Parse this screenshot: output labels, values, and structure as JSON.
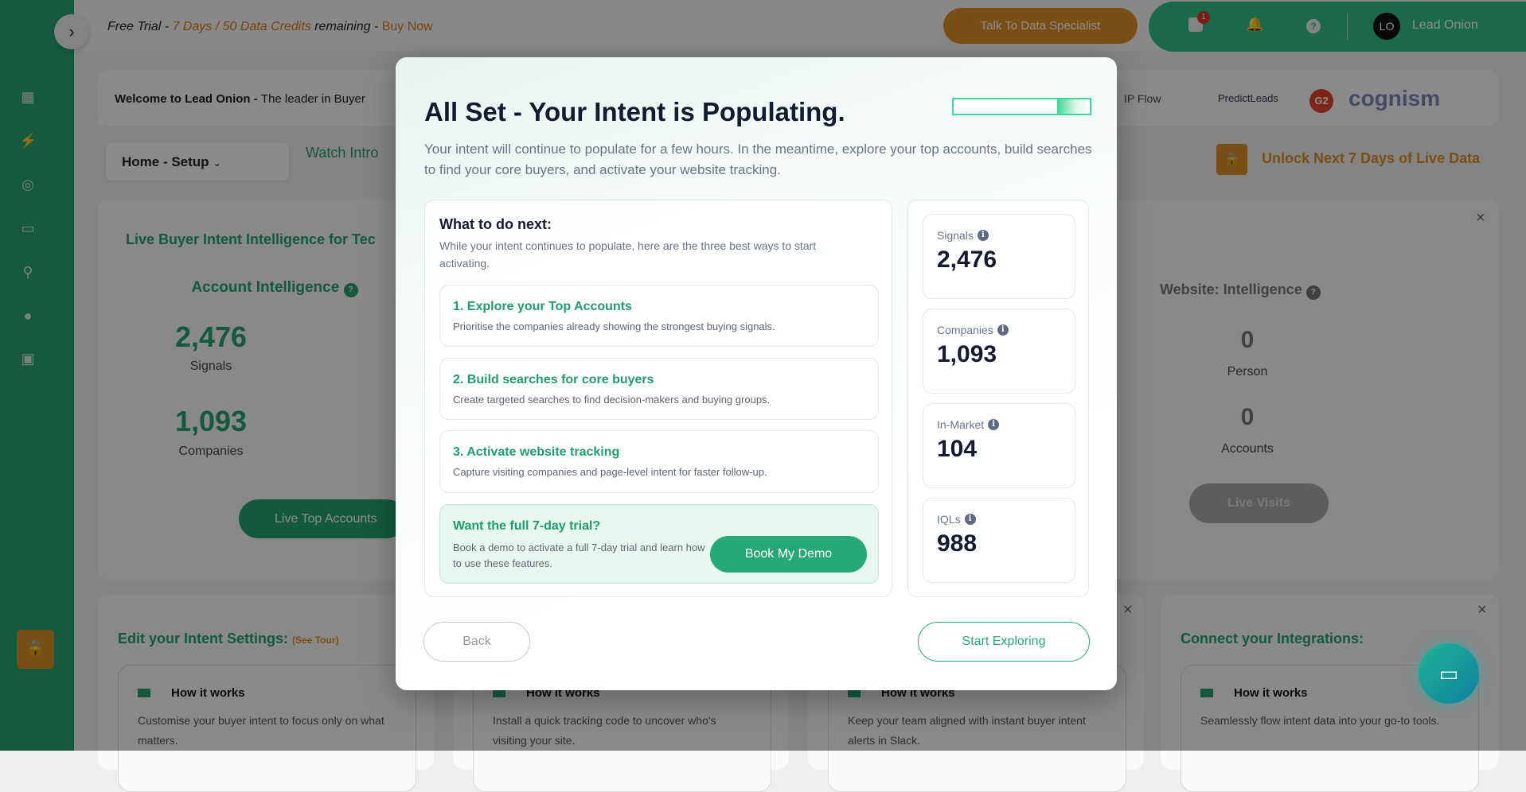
{
  "topbar": {
    "trial_prefix": "Free Trial - ",
    "trial_highlight": "7 Days / 50 Data Credits",
    "trial_mid": " remaining - ",
    "buy_now": "Buy Now",
    "talk_button": "Talk To Data Specialist",
    "messages_badge": "1",
    "avatar_initials": "LO",
    "user_name": "Lead Onion"
  },
  "welcome": {
    "bold": "Welcome to Lead Onion - ",
    "text": "The leader in Buyer",
    "logos": [
      "IP Flow",
      "PredictLeads",
      "G2",
      "cognism"
    ]
  },
  "nav": {
    "dropdown": "Home - Setup",
    "watch_intro": "Watch Intro",
    "unlock": "Unlock Next 7 Days of Live Data"
  },
  "intel_card": {
    "title": "Live Buyer Intent Intelligence for Tec",
    "account": {
      "title": "Account Intelligence",
      "signals_value": "2,476",
      "signals_label": "Signals",
      "companies_value": "1,093",
      "companies_label": "Companies",
      "button": "Live Top Accounts"
    },
    "website": {
      "title": "Website: Intelligence",
      "person_value": "0",
      "person_label": "Person",
      "accounts_value": "0",
      "accounts_label": "Accounts",
      "button": "Live Visits"
    }
  },
  "bottom_cards": [
    {
      "title": "Edit your Intent Settings:",
      "tour": "(See Tour)",
      "how": "How it works",
      "text": "Customise your buyer intent to focus only on what matters."
    },
    {
      "how": "How it works",
      "text": "Install a quick tracking code to uncover who's visiting your site."
    },
    {
      "how": "How it works",
      "text": "Keep your team aligned with instant buyer intent alerts in Slack."
    },
    {
      "title": "Connect your Integrations:",
      "how": "How it works",
      "text": "Seamlessly flow intent data into your go-to tools."
    }
  ],
  "modal": {
    "title": "All Set - Your Intent is Populating.",
    "subtitle": "Your intent will continue to populate for a few hours. In the meantime, explore your top accounts, build searches to find your core buyers, and activate your website tracking.",
    "next_title": "What to do next:",
    "next_desc": "While your intent continues to populate, here are the three best ways to start activating.",
    "steps": [
      {
        "title": "1. Explore your Top Accounts",
        "desc": "Prioritise the companies already showing the strongest buying signals."
      },
      {
        "title": "2. Build searches for core buyers",
        "desc": "Create targeted searches to find decision-makers and buying groups."
      },
      {
        "title": "3. Activate website tracking",
        "desc": "Capture visiting companies and page-level intent for faster follow-up."
      }
    ],
    "trial": {
      "title": "Want the full 7-day trial?",
      "desc": "Book a demo to activate a full 7-day trial and learn how to use these features.",
      "button": "Book My Demo"
    },
    "stats": [
      {
        "label": "Signals",
        "value": "2,476"
      },
      {
        "label": "Companies",
        "value": "1,093"
      },
      {
        "label": "In-Market",
        "value": "104"
      },
      {
        "label": "IQLs",
        "value": "988"
      }
    ],
    "back": "Back",
    "start": "Start Exploring"
  },
  "colors": {
    "brand_green": "#25a36f",
    "accent_orange": "#de9128",
    "dark_text": "#141a30"
  }
}
